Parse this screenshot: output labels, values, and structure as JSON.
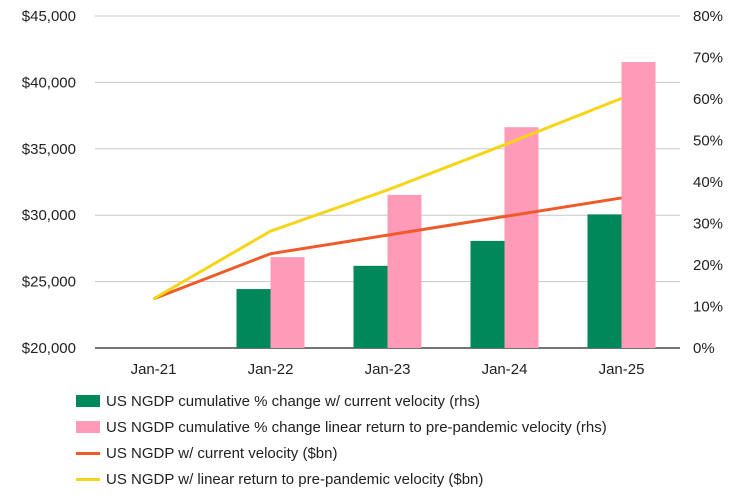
{
  "chart_data": {
    "type": "bar+line",
    "categories": [
      "Jan-21",
      "Jan-22",
      "Jan-23",
      "Jan-24",
      "Jan-25"
    ],
    "left_axis": {
      "min": 20000,
      "max": 45000,
      "step": 5000,
      "tick_labels": [
        "$20,000",
        "$25,000",
        "$30,000",
        "$35,000",
        "$40,000",
        "$45,000"
      ]
    },
    "right_axis": {
      "min": 0,
      "max": 80,
      "step": 10,
      "tick_labels": [
        "0%",
        "10%",
        "20%",
        "30%",
        "40%",
        "50%",
        "60%",
        "70%",
        "80%"
      ]
    },
    "series": [
      {
        "name": "US NGDP cumulative % change w/ current velocity (rhs)",
        "kind": "bar",
        "axis": "right",
        "color": "#00875a",
        "values": [
          null,
          14.2,
          19.8,
          25.8,
          32.2
        ]
      },
      {
        "name": "US NGDP cumulative % change linear return to pre-pandemic velocity (rhs)",
        "kind": "bar",
        "axis": "right",
        "color": "#ff9bb8",
        "values": [
          null,
          21.9,
          36.9,
          53.2,
          68.9
        ]
      },
      {
        "name": "US NGDP w/ current velocity ($bn)",
        "kind": "line",
        "axis": "left",
        "color": "#f05a28",
        "values": [
          23700,
          27100,
          28500,
          29900,
          31300
        ]
      },
      {
        "name": "US NGDP w/ linear return to pre-pandemic velocity ($bn)",
        "kind": "line",
        "axis": "left",
        "color": "#f5d516",
        "values": [
          23700,
          28800,
          31900,
          35300,
          38800
        ]
      }
    ],
    "title": "",
    "xlabel": "",
    "ylabel": "",
    "grid": "horizontal",
    "legend": "bottom"
  }
}
